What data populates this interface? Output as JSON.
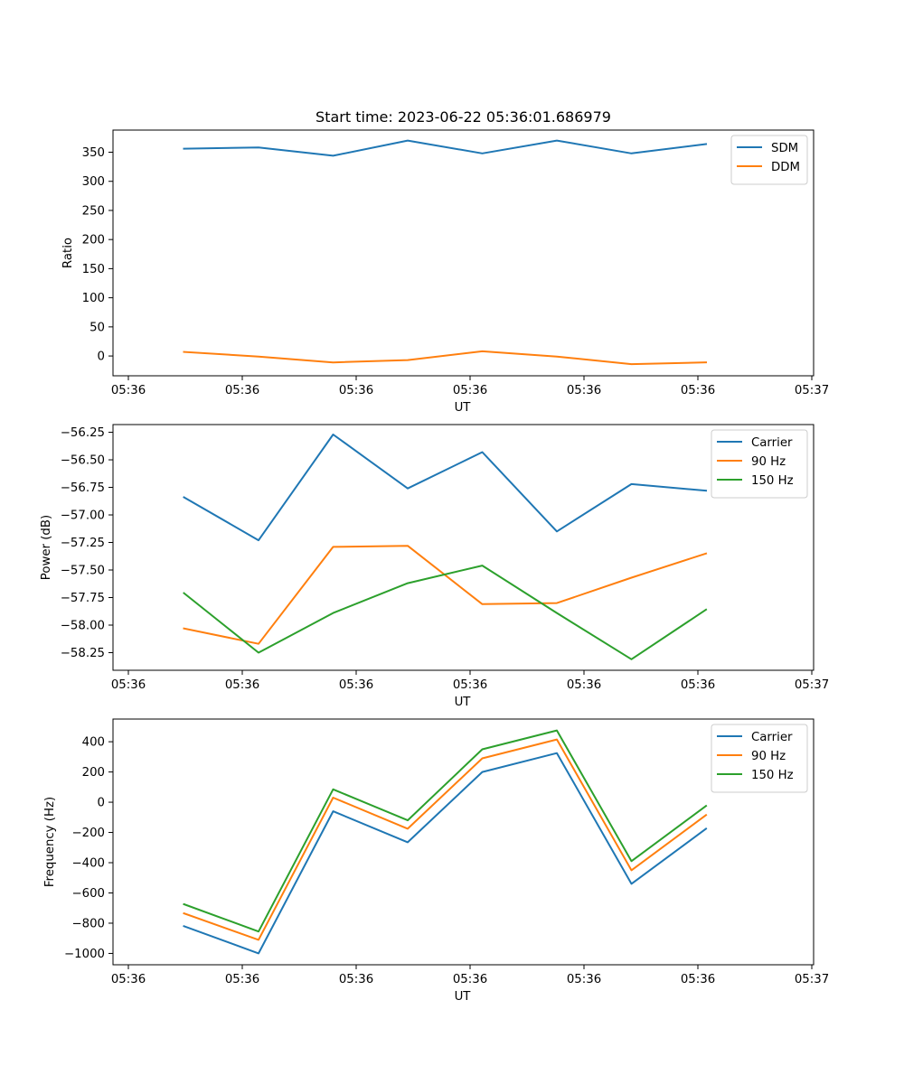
{
  "chart_data": [
    {
      "type": "line",
      "title": "Start time: 2023-06-22 05:36:01.686979",
      "xlabel": "UT",
      "ylabel": "Ratio",
      "x_tick_labels": [
        "05:36",
        "05:36",
        "05:36",
        "05:36",
        "05:36",
        "05:36",
        "05:37"
      ],
      "ylim": [
        -34,
        388
      ],
      "yticks": [
        0,
        50,
        100,
        150,
        200,
        250,
        300,
        350
      ],
      "y_tick_labels": [
        "0",
        "50",
        "100",
        "150",
        "200",
        "250",
        "300",
        "350"
      ],
      "grid": false,
      "legend_position": "top-right",
      "series": [
        {
          "name": "SDM",
          "color": "#1f77b4",
          "values": [
            356,
            358,
            344,
            370,
            348,
            370,
            348,
            364
          ]
        },
        {
          "name": "DDM",
          "color": "#ff7f0e",
          "values": [
            7,
            -1,
            -11,
            -7,
            8,
            -1,
            -14,
            -11
          ]
        }
      ]
    },
    {
      "type": "line",
      "title": "",
      "xlabel": "UT",
      "ylabel": "Power (dB)",
      "x_tick_labels": [
        "05:36",
        "05:36",
        "05:36",
        "05:36",
        "05:36",
        "05:36",
        "05:37"
      ],
      "ylim": [
        -58.41,
        -56.18
      ],
      "yticks": [
        -58.25,
        -58.0,
        -57.75,
        -57.5,
        -57.25,
        -57.0,
        -56.75,
        -56.5,
        -56.25
      ],
      "y_tick_labels": [
        "−58.25",
        "−58.00",
        "−57.75",
        "−57.50",
        "−57.25",
        "−57.00",
        "−56.75",
        "−56.50",
        "−56.25"
      ],
      "grid": false,
      "legend_position": "top-right",
      "series": [
        {
          "name": "Carrier",
          "color": "#1f77b4",
          "values": [
            -56.84,
            -57.23,
            -56.27,
            -56.76,
            -56.43,
            -57.15,
            -56.72,
            -56.78
          ]
        },
        {
          "name": "90 Hz",
          "color": "#ff7f0e",
          "values": [
            -58.03,
            -58.17,
            -57.29,
            -57.28,
            -57.81,
            -57.8,
            -57.57,
            -57.35
          ]
        },
        {
          "name": "150 Hz",
          "color": "#2ca02c",
          "values": [
            -57.71,
            -58.25,
            -57.89,
            -57.62,
            -57.46,
            -57.89,
            -58.31,
            -57.86
          ]
        }
      ]
    },
    {
      "type": "line",
      "title": "",
      "xlabel": "UT",
      "ylabel": "Frequency (Hz)",
      "x_tick_labels": [
        "05:36",
        "05:36",
        "05:36",
        "05:36",
        "05:36",
        "05:36",
        "05:37"
      ],
      "ylim": [
        -1075,
        550
      ],
      "yticks": [
        -1000,
        -800,
        -600,
        -400,
        -200,
        0,
        200,
        400
      ],
      "y_tick_labels": [
        "−1000",
        "−800",
        "−600",
        "−400",
        "−200",
        "0",
        "200",
        "400"
      ],
      "grid": false,
      "legend_position": "top-right",
      "series": [
        {
          "name": "Carrier",
          "color": "#1f77b4",
          "values": [
            -820,
            -1000,
            -60,
            -265,
            200,
            325,
            -540,
            -175
          ]
        },
        {
          "name": "90 Hz",
          "color": "#ff7f0e",
          "values": [
            -735,
            -910,
            30,
            -175,
            290,
            415,
            -450,
            -85
          ]
        },
        {
          "name": "150 Hz",
          "color": "#2ca02c",
          "values": [
            -675,
            -855,
            85,
            -120,
            350,
            475,
            -390,
            -25
          ]
        }
      ]
    }
  ]
}
